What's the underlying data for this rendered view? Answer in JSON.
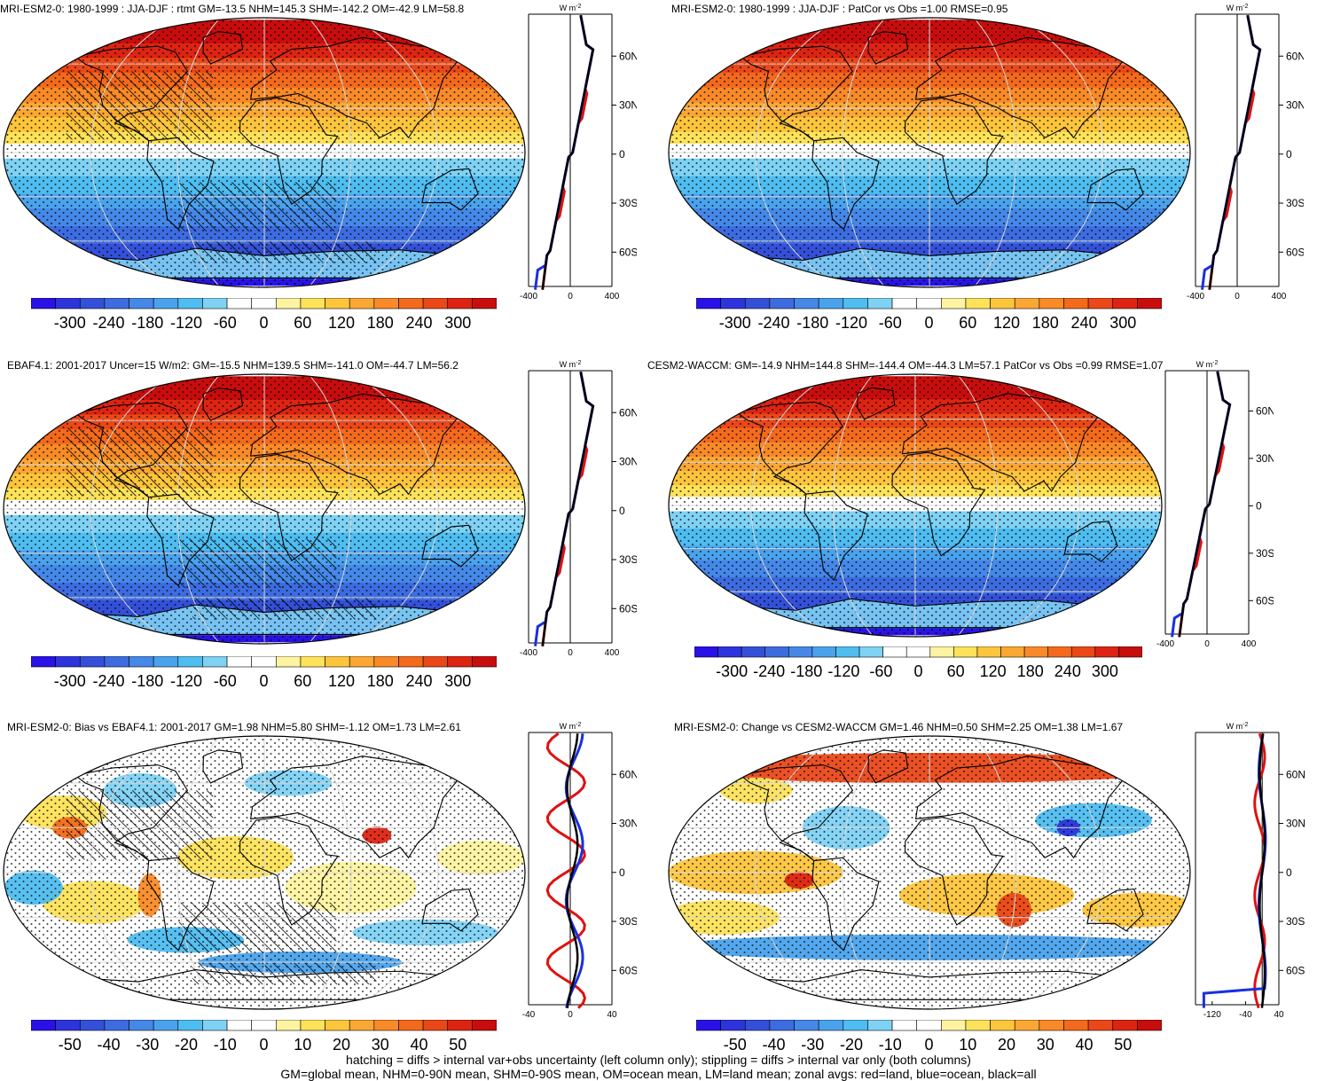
{
  "palette": {
    "full": [
      "#2a12e6",
      "#2e34dc",
      "#3550d8",
      "#3d6ce0",
      "#4588e8",
      "#4aa2ec",
      "#4fbdf0",
      "#7fd2f4",
      "#ffffff",
      "#ffffff",
      "#fef3a0",
      "#fde25a",
      "#fcc53c",
      "#fba733",
      "#f98a28",
      "#f36a1c",
      "#ea4818",
      "#dd2412",
      "#c80d0d"
    ]
  },
  "footer": {
    "line1": "hatching = diffs > internal var+obs uncertainty (left column only); stippling = diffs > internal var only (both columns)",
    "line2": "GM=global mean, NHM=0-90N mean, SHM=0-90S mean, OM=ocean mean, LM=land mean; zonal avgs: red=land, blue=ocean, black=all"
  },
  "panels": [
    {
      "id": "p1",
      "title": "MRI-ESM2-0: 1980-1999 : JJA-DJF : rtmt GM=-13.5 NHM=145.3 SHM=-142.2 OM=-42.9 LM=58.8",
      "field": "clim",
      "hatch": true,
      "cbar_labels": [
        "-300",
        "-240",
        "-180",
        "-120",
        "-60",
        "0",
        "60",
        "120",
        "180",
        "240",
        "300"
      ],
      "zonal": {
        "unit": "W m",
        "unit_exp": "-2",
        "xticks": [
          "-400",
          "0",
          "400"
        ],
        "xmin": -400,
        "xmax": 400,
        "lat_labels": [
          "60N",
          "30N",
          "0",
          "30S",
          "60S"
        ],
        "lat_values": [
          60,
          30,
          0,
          -30,
          -60
        ]
      }
    },
    {
      "id": "p2",
      "title": "MRI-ESM2-0: 1980-1999 : JJA-DJF : PatCor vs Obs =1.00 RMSE=0.95",
      "field": "clim",
      "hatch": false,
      "cbar_labels": [
        "-300",
        "-240",
        "-180",
        "-120",
        "-60",
        "0",
        "60",
        "120",
        "180",
        "240",
        "300"
      ],
      "zonal": {
        "unit": "W m",
        "unit_exp": "-2",
        "xticks": [
          "-400",
          "0",
          "400"
        ],
        "xmin": -400,
        "xmax": 400,
        "lat_labels": [
          "60N",
          "30N",
          "0",
          "30S",
          "60S"
        ],
        "lat_values": [
          60,
          30,
          0,
          -30,
          -60
        ]
      }
    },
    {
      "id": "p3",
      "title": "EBAF4.1: 2001-2017 Uncer=15 W/m2: GM=-15.5 NHM=139.5 SHM=-141.0 OM=-44.7 LM=56.2",
      "field": "clim",
      "hatch": true,
      "cbar_labels": [
        "-300",
        "-240",
        "-180",
        "-120",
        "-60",
        "0",
        "60",
        "120",
        "180",
        "240",
        "300"
      ],
      "zonal": {
        "unit": "W m",
        "unit_exp": "-2",
        "xticks": [
          "-400",
          "0",
          "400"
        ],
        "xmin": -400,
        "xmax": 400,
        "lat_labels": [
          "60N",
          "30N",
          "0",
          "30S",
          "60S"
        ],
        "lat_values": [
          60,
          30,
          0,
          -30,
          -60
        ]
      }
    },
    {
      "id": "p4",
      "title": "CESM2-WACCM: GM=-14.9 NHM=144.8 SHM=-144.4 OM=-44.3 LM=57.1 PatCor vs Obs =0.99 RMSE=1.07",
      "field": "clim",
      "hatch": false,
      "cbar_labels": [
        "-300",
        "-240",
        "-180",
        "-120",
        "-60",
        "0",
        "60",
        "120",
        "180",
        "240",
        "300"
      ],
      "zonal": {
        "unit": "W m",
        "unit_exp": "-2",
        "xticks": [
          "-400",
          "0",
          "400"
        ],
        "xmin": -400,
        "xmax": 400,
        "lat_labels": [
          "60N",
          "30N",
          "0",
          "30S",
          "60S"
        ],
        "lat_values": [
          60,
          30,
          0,
          -30,
          -60
        ]
      }
    },
    {
      "id": "p5",
      "title": "MRI-ESM2-0: Bias vs EBAF4.1: 2001-2017 GM=1.98 NHM=5.80 SHM=-1.12 OM=1.73 LM=2.61",
      "field": "bias",
      "hatch": true,
      "cbar_labels": [
        "-50",
        "-40",
        "-30",
        "-20",
        "-10",
        "0",
        "10",
        "20",
        "30",
        "40",
        "50"
      ],
      "zonal": {
        "unit": "W m",
        "unit_exp": "-2",
        "xticks": [
          "-40",
          "0",
          "40"
        ],
        "xmin": -40,
        "xmax": 40,
        "lat_labels": [
          "60N",
          "30N",
          "0",
          "30S",
          "60S"
        ],
        "lat_values": [
          60,
          30,
          0,
          -30,
          -60
        ]
      }
    },
    {
      "id": "p6",
      "title": "MRI-ESM2-0: Change vs CESM2-WACCM GM=1.46 NHM=0.50 SHM=2.25 OM=1.38 LM=1.67",
      "field": "change",
      "hatch": false,
      "cbar_labels": [
        "-50",
        "-40",
        "-30",
        "-20",
        "-10",
        "0",
        "10",
        "20",
        "30",
        "40",
        "50"
      ],
      "zonal": {
        "unit": "W m",
        "unit_exp": "-2",
        "xticks": [
          "-120",
          "-40",
          "40"
        ],
        "xmin": -160,
        "xmax": 40,
        "lat_labels": [
          "60N",
          "30N",
          "0",
          "30S",
          "60S"
        ],
        "lat_values": [
          60,
          30,
          0,
          -30,
          -60
        ]
      }
    }
  ]
}
